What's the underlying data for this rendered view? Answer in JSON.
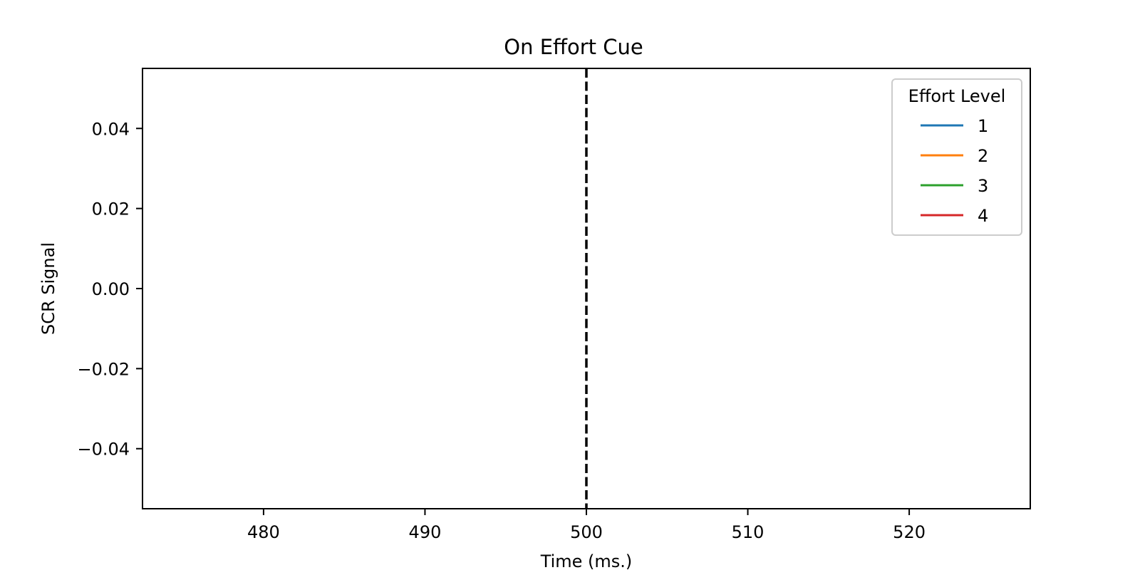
{
  "chart_data": {
    "type": "line",
    "title": "On Effort Cue",
    "xlabel": "Time (ms.)",
    "ylabel": "SCR Signal",
    "xlim": [
      472.5,
      527.5
    ],
    "ylim": [
      -0.055,
      0.055
    ],
    "xticks": [
      480,
      490,
      500,
      510,
      520
    ],
    "xtick_labels": [
      "480",
      "490",
      "500",
      "510",
      "520"
    ],
    "yticks": [
      0.04,
      0.02,
      0.0,
      -0.02,
      -0.04
    ],
    "ytick_labels": [
      "0.04",
      "0.02",
      "0.00",
      "−0.02",
      "−0.04"
    ],
    "grid": false,
    "vline": {
      "x": 500,
      "style": "dashed",
      "color": "#000000"
    },
    "legend": {
      "title": "Effort Level",
      "placement": "top-right",
      "entries": [
        {
          "label": "1",
          "color": "#1f77b4"
        },
        {
          "label": "2",
          "color": "#ff7f0e"
        },
        {
          "label": "3",
          "color": "#2ca02c"
        },
        {
          "label": "4",
          "color": "#d62728"
        }
      ]
    },
    "series": [
      {
        "name": "1",
        "color": "#1f77b4",
        "x": [],
        "y": []
      },
      {
        "name": "2",
        "color": "#ff7f0e",
        "x": [],
        "y": []
      },
      {
        "name": "3",
        "color": "#2ca02c",
        "x": [],
        "y": []
      },
      {
        "name": "4",
        "color": "#d62728",
        "x": [],
        "y": []
      }
    ]
  }
}
